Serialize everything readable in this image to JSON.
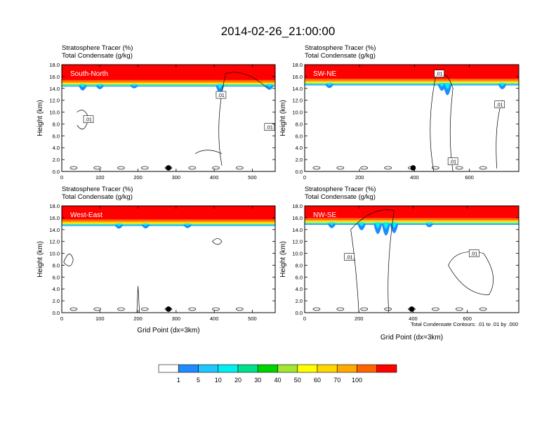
{
  "figure": {
    "title": "2014-02-26_21:00:00",
    "header_line1": "Stratosphere Tracer   (%)",
    "header_line2": "Total Condensate   (g/kg)",
    "x_axis_label": "Grid Point (dx=3km)",
    "y_axis_label": "Height (km)",
    "contour_note": "Total Condensate Contours: .01 to .01 by .000"
  },
  "colorbar": {
    "colors": [
      "#ffffff",
      "#1e8cff",
      "#1ec8ff",
      "#00f0f0",
      "#00e08c",
      "#00d400",
      "#a0e632",
      "#ffff00",
      "#ffd700",
      "#ffaa00",
      "#ff6400",
      "#ff0000"
    ],
    "labels": [
      "1",
      "5",
      "10",
      "20",
      "30",
      "40",
      "50",
      "60",
      "70",
      "100"
    ]
  },
  "chart_data": [
    {
      "type": "heatmap",
      "panel": "South-North",
      "title": "South-North",
      "xlim": [
        0,
        560
      ],
      "ylim": [
        0,
        18
      ],
      "x_ticks": [
        0,
        100,
        200,
        300,
        400,
        500
      ],
      "y_ticks": [
        "0.0",
        "2.0",
        "4.0",
        "6.0",
        "8.0",
        "10.0",
        "12.0",
        "14.0",
        "16.0",
        "18.0"
      ],
      "marker_x": 280,
      "tracer_top_km": 14.5,
      "contour_label": ".01",
      "contour_label_points": [
        [
          70,
          8.8
        ],
        [
          418,
          12.9
        ],
        [
          545,
          7.5
        ]
      ]
    },
    {
      "type": "heatmap",
      "panel": "SW-NE",
      "title": "SW-NE",
      "xlim": [
        0,
        780
      ],
      "ylim": [
        0,
        18
      ],
      "x_ticks": [
        0,
        200,
        400,
        600
      ],
      "y_ticks": [
        "0.0",
        "2.0",
        "4.0",
        "6.0",
        "8.0",
        "10.0",
        "12.0",
        "14.0",
        "16.0",
        "18.0"
      ],
      "marker_x": 395,
      "tracer_top_km": 14.7,
      "contour_label": ".01",
      "contour_label_points": [
        [
          490,
          16.5
        ],
        [
          710,
          11.3
        ],
        [
          540,
          1.7
        ]
      ]
    },
    {
      "type": "heatmap",
      "panel": "West-East",
      "title": "West-East",
      "xlim": [
        0,
        560
      ],
      "ylim": [
        0,
        18
      ],
      "x_ticks": [
        0,
        100,
        200,
        300,
        400,
        500
      ],
      "y_ticks": [
        "0.0",
        "2.0",
        "4.0",
        "6.0",
        "8.0",
        "10.0",
        "12.0",
        "14.0",
        "16.0",
        "18.0"
      ],
      "marker_x": 280,
      "tracer_top_km": 14.8,
      "contour_label": ".01",
      "contour_label_points": []
    },
    {
      "type": "heatmap",
      "panel": "NW-SE",
      "title": "NW-SE",
      "xlim": [
        0,
        790
      ],
      "ylim": [
        0,
        18
      ],
      "x_ticks": [
        0,
        200,
        400,
        600
      ],
      "y_ticks": [
        "0.0",
        "2.0",
        "4.0",
        "6.0",
        "8.0",
        "10.0",
        "12.0",
        "14.0",
        "16.0",
        "18.0"
      ],
      "marker_x": 395,
      "tracer_top_km": 15.0,
      "contour_label": ".01",
      "contour_label_points": [
        [
          165,
          9.4
        ],
        [
          625,
          10.0
        ]
      ]
    }
  ]
}
